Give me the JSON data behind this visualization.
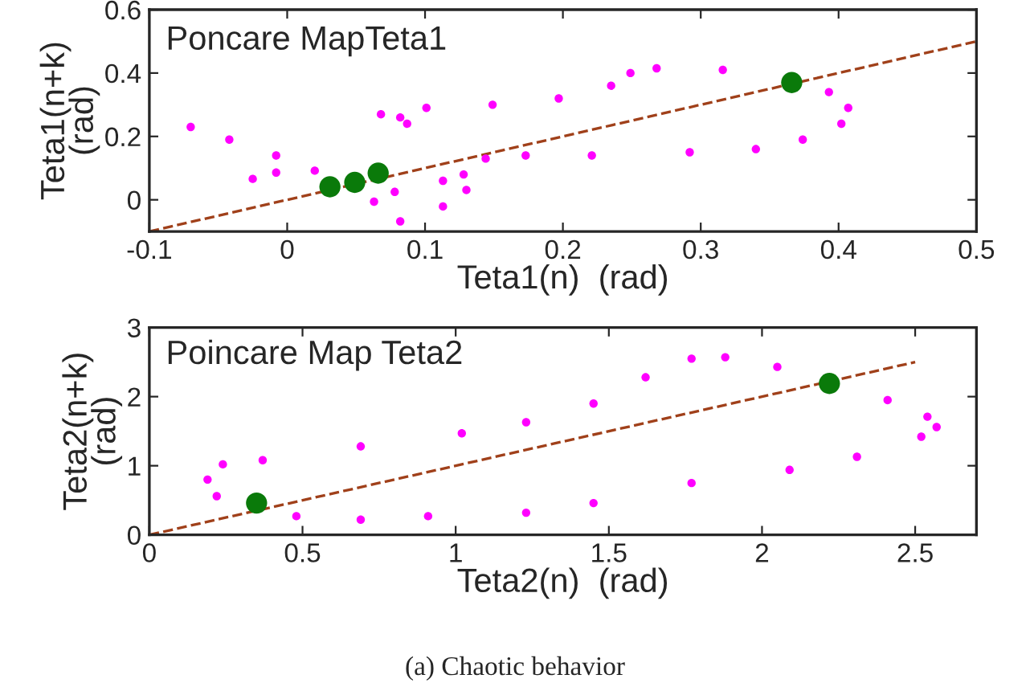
{
  "chart_data": [
    {
      "type": "scatter",
      "title": "Poncare MapTeta1",
      "xlabel": "Teta1(n)  (rad)",
      "ylabel": "Teta1(n+k)\n(rad)",
      "xlim": [
        -0.1,
        0.5
      ],
      "ylim": [
        -0.1,
        0.6
      ],
      "xticks": [
        -0.1,
        0,
        0.1,
        0.2,
        0.3,
        0.4,
        0.5
      ],
      "yticks": [
        0,
        0.2,
        0.4,
        0.6
      ],
      "grid": false,
      "legend": false,
      "series": [
        {
          "color": "#ff00ff",
          "marker": "circle",
          "x": [
            0.128,
            0.144,
            0.173,
            0.221,
            0.292,
            0.34,
            0.374,
            0.402,
            0.407,
            0.393,
            0.316,
            0.268,
            0.249,
            0.235,
            0.197,
            0.149,
            0.101,
            0.068,
            0.082,
            0.087,
            -0.07,
            -0.042,
            -0.008,
            0.063,
            0.082,
            -0.025,
            -0.008,
            0.02,
            0.078,
            0.113,
            0.113,
            0.13
          ],
          "values": [
            0.08,
            0.13,
            0.14,
            0.14,
            0.15,
            0.16,
            0.19,
            0.24,
            0.29,
            0.34,
            0.41,
            0.415,
            0.4,
            0.36,
            0.32,
            0.3,
            0.29,
            0.27,
            0.26,
            0.24,
            0.23,
            0.19,
            0.14,
            -0.006,
            -0.068,
            0.066,
            0.086,
            0.092,
            0.025,
            -0.021,
            0.06,
            0.031
          ]
        },
        {
          "type": "line",
          "color": "#a0401a",
          "line_style": "dashed",
          "marker": "none",
          "x": [
            -0.1,
            0.5
          ],
          "values": [
            -0.1,
            0.5
          ]
        },
        {
          "color": "#0a7a0a",
          "marker": "circle",
          "x": [
            0.031,
            0.049,
            0.066,
            0.366
          ],
          "values": [
            0.041,
            0.055,
            0.084,
            0.37
          ]
        }
      ]
    },
    {
      "type": "scatter",
      "title": "Poincare Map Teta2",
      "xlabel": "Teta2(n)  (rad)",
      "ylabel": "Teta2(n+k)\n(rad)",
      "xlim": [
        0,
        2.7
      ],
      "ylim": [
        0,
        3
      ],
      "xticks": [
        0,
        0.5,
        1,
        1.5,
        2,
        2.5
      ],
      "yticks": [
        0,
        1,
        2,
        3
      ],
      "grid": false,
      "legend": false,
      "annotations": [
        "(a) Chaotic behavior"
      ],
      "series": [
        {
          "color": "#ff00ff",
          "marker": "circle",
          "x": [
            0.22,
            0.19,
            0.24,
            0.37,
            0.69,
            1.02,
            1.23,
            1.45,
            1.62,
            1.77,
            1.88,
            2.05,
            2.41,
            2.54,
            2.57,
            2.52,
            2.31,
            2.09,
            1.77,
            1.45,
            1.23,
            0.91,
            0.69,
            0.48
          ],
          "values": [
            0.56,
            0.8,
            1.02,
            1.08,
            1.28,
            1.47,
            1.63,
            1.9,
            2.28,
            2.55,
            2.57,
            2.43,
            1.95,
            1.71,
            1.56,
            1.42,
            1.13,
            0.94,
            0.75,
            0.46,
            0.32,
            0.27,
            0.22,
            0.27
          ]
        },
        {
          "type": "line",
          "color": "#a0401a",
          "line_style": "dashed",
          "marker": "none",
          "x": [
            0,
            2.5
          ],
          "values": [
            0,
            2.5
          ]
        },
        {
          "color": "#0a7a0a",
          "marker": "circle",
          "x": [
            0.35,
            2.22
          ],
          "values": [
            0.46,
            2.19
          ]
        }
      ]
    }
  ]
}
